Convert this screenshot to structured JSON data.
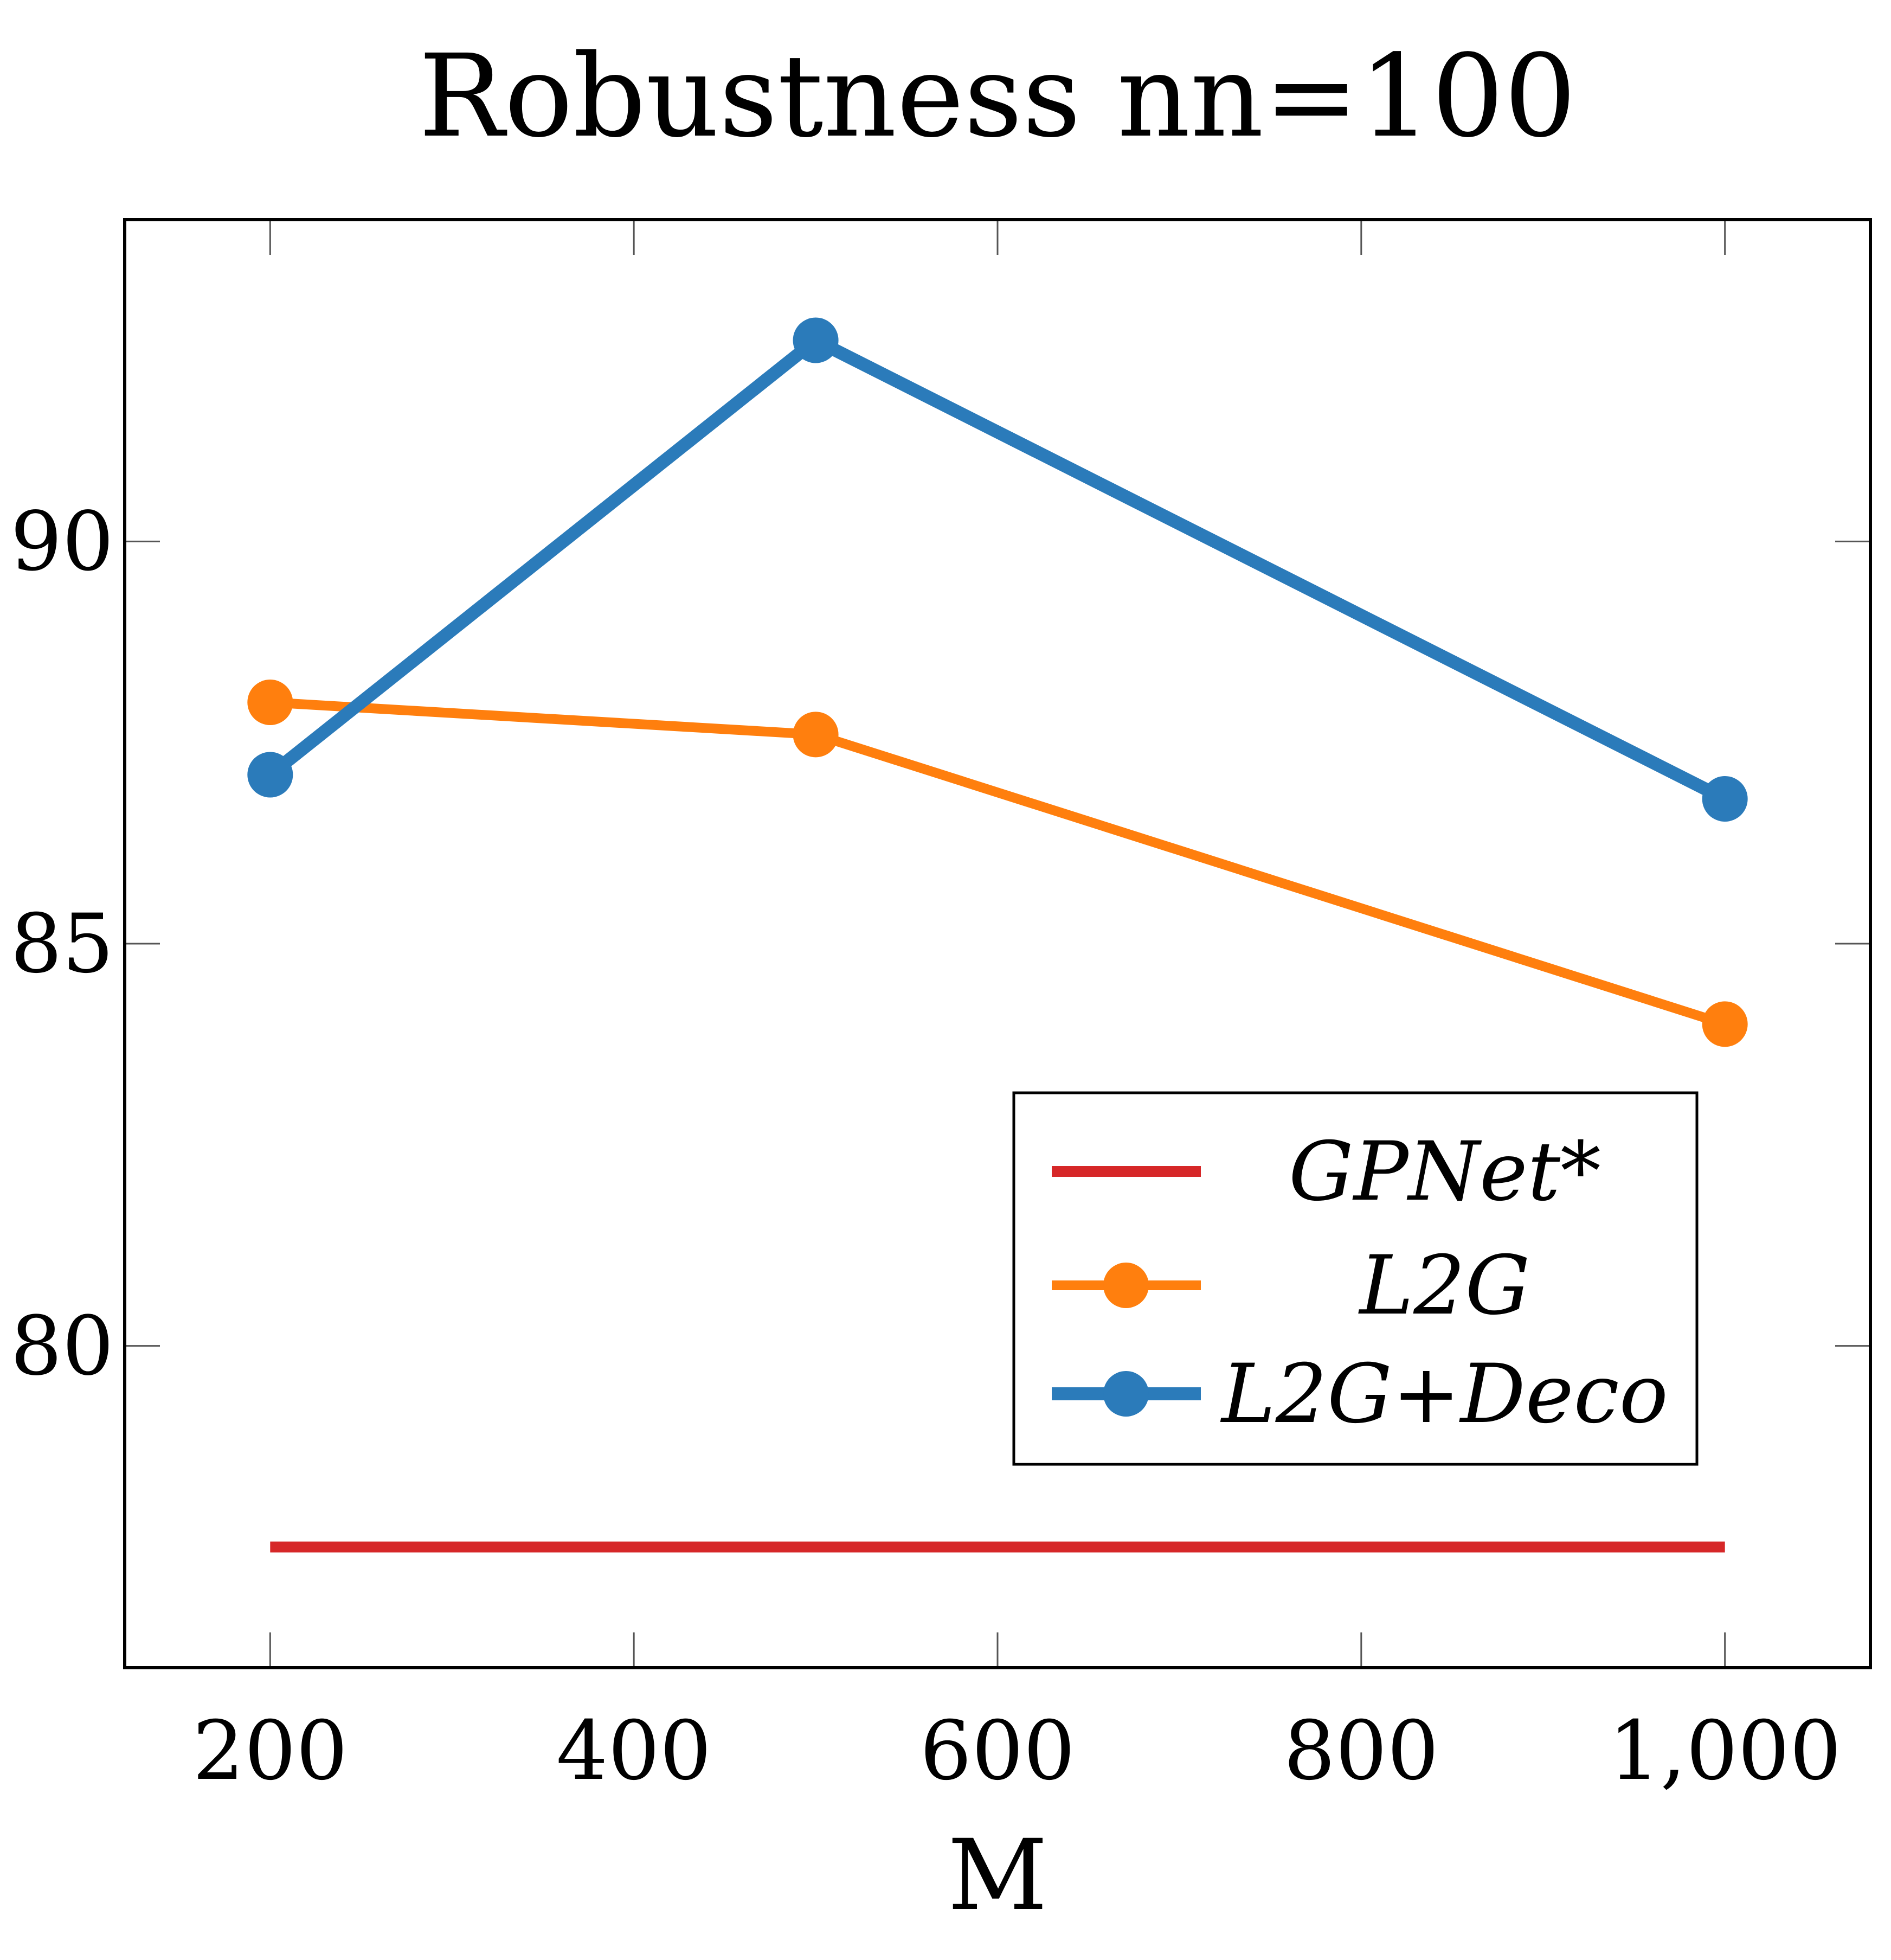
{
  "chart_data": {
    "type": "line",
    "title": "Robustness nn=100",
    "xlabel": "M",
    "ylabel": "",
    "xlim": [
      120,
      1080
    ],
    "ylim": [
      76.0,
      94.0
    ],
    "x_ticks": [
      200,
      400,
      600,
      800,
      1000
    ],
    "x_tick_labels": [
      "200",
      "400",
      "600",
      "800",
      "1,000"
    ],
    "y_ticks": [
      80,
      85,
      90
    ],
    "y_tick_labels": [
      "80",
      "85",
      "90"
    ],
    "grid": false,
    "legend_position": "bottom-right",
    "series": [
      {
        "name": "GPNet*",
        "color": "#d62728",
        "marker": "none",
        "x": [
          200,
          1000
        ],
        "y": [
          77.5,
          77.5
        ]
      },
      {
        "name": "L2G",
        "color": "#ff7f0e",
        "marker": "circle",
        "x": [
          200,
          500,
          1000
        ],
        "y": [
          88.0,
          87.6,
          84.0
        ]
      },
      {
        "name": "L2G+Deco",
        "color": "#2b7bba",
        "marker": "circle",
        "x": [
          200,
          500,
          1000
        ],
        "y": [
          87.1,
          92.5,
          86.8
        ]
      }
    ]
  }
}
